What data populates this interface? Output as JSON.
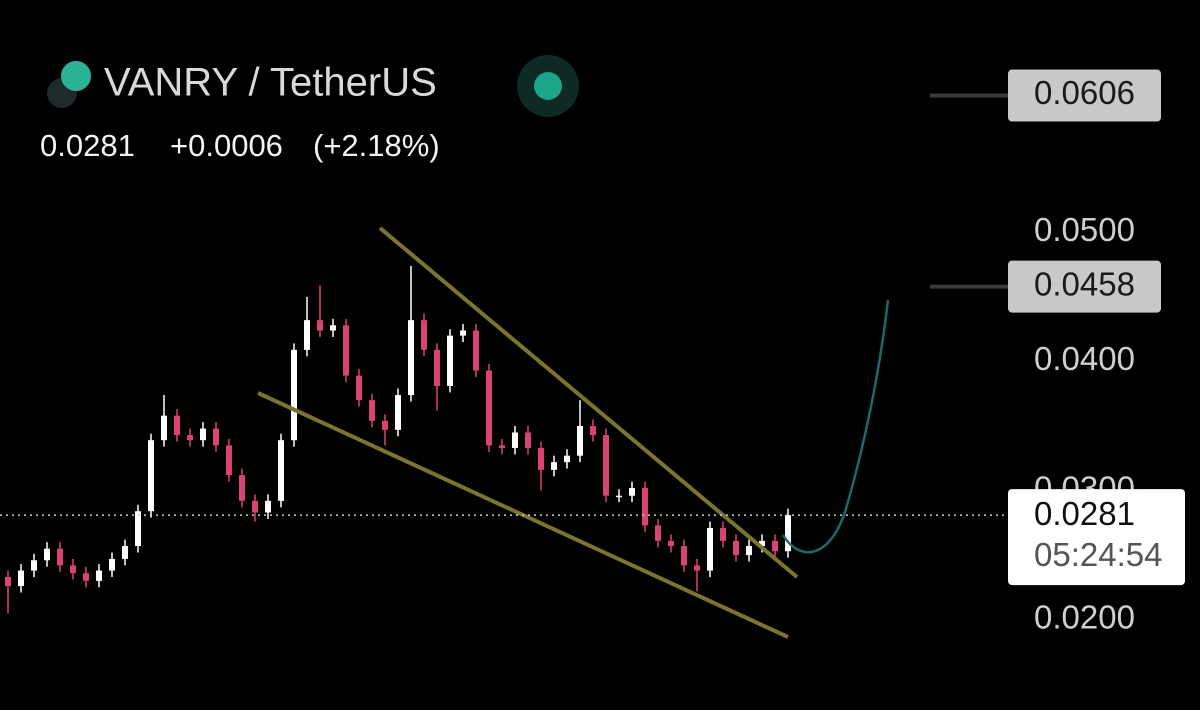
{
  "chart_data": {
    "type": "candlestick",
    "title": "VANRY / TetherUS",
    "change": "+0.0006",
    "change_pct": "(+2.18%)",
    "last_price": 0.0281,
    "countdown": "05:24:54",
    "levels": [
      0.0606,
      0.0458
    ],
    "up_color": "#ffffff",
    "down_color": "#d9437a",
    "grid": false,
    "ylim": [
      0.013,
      0.068
    ],
    "yticks": [
      {
        "value": 0.02,
        "label": "0.0200"
      },
      {
        "value": 0.03,
        "label": "0.0300"
      },
      {
        "value": 0.04,
        "label": "0.0400"
      },
      {
        "value": 0.05,
        "label": "0.0500"
      }
    ],
    "open": [
      0.0233,
      0.0226,
      0.0238,
      0.0246,
      0.0255,
      0.0242,
      0.0236,
      0.023,
      0.0238,
      0.0247,
      0.0257,
      0.0284,
      0.0339,
      0.0358,
      0.0343,
      0.0339,
      0.0348,
      0.0335,
      0.0312,
      0.0292,
      0.0283,
      0.0292,
      0.0339,
      0.0409,
      0.0432,
      0.0424,
      0.0428,
      0.0389,
      0.037,
      0.0354,
      0.0347,
      0.0374,
      0.0432,
      0.0409,
      0.0381,
      0.042,
      0.0424,
      0.0393,
      0.0335,
      0.0333,
      0.0345,
      0.0333,
      0.0316,
      0.0322,
      0.0327,
      0.035,
      0.0343,
      0.0296,
      0.0296,
      0.0302,
      0.0273,
      0.0261,
      0.0257,
      0.0242,
      0.0238,
      0.0271,
      0.0261,
      0.025,
      0.0257,
      0.0261,
      0.0253
    ],
    "high": [
      0.0238,
      0.0243,
      0.0251,
      0.026,
      0.026,
      0.0247,
      0.0241,
      0.0243,
      0.0252,
      0.0262,
      0.0289,
      0.0344,
      0.0374,
      0.0363,
      0.0348,
      0.0353,
      0.0353,
      0.034,
      0.0317,
      0.0297,
      0.0297,
      0.0344,
      0.0414,
      0.045,
      0.0459,
      0.0433,
      0.0433,
      0.0394,
      0.0375,
      0.0359,
      0.0379,
      0.0474,
      0.0437,
      0.0414,
      0.0425,
      0.0429,
      0.0429,
      0.0398,
      0.034,
      0.035,
      0.035,
      0.0338,
      0.0327,
      0.0332,
      0.037,
      0.0355,
      0.0348,
      0.0301,
      0.0307,
      0.0307,
      0.0278,
      0.0266,
      0.0262,
      0.0247,
      0.0276,
      0.0276,
      0.0266,
      0.0262,
      0.0266,
      0.0266,
      0.0286
    ],
    "low": [
      0.0205,
      0.0221,
      0.0233,
      0.0241,
      0.0237,
      0.0231,
      0.0225,
      0.0225,
      0.0233,
      0.0242,
      0.0252,
      0.0279,
      0.0334,
      0.0338,
      0.0334,
      0.0334,
      0.033,
      0.0307,
      0.0287,
      0.0276,
      0.0278,
      0.0287,
      0.0334,
      0.0404,
      0.0419,
      0.0419,
      0.0384,
      0.0365,
      0.0349,
      0.0335,
      0.0342,
      0.0369,
      0.0404,
      0.0362,
      0.0376,
      0.0415,
      0.0388,
      0.033,
      0.0328,
      0.0328,
      0.0328,
      0.03,
      0.0311,
      0.0317,
      0.0322,
      0.0338,
      0.0291,
      0.0291,
      0.0291,
      0.0268,
      0.0256,
      0.0252,
      0.0237,
      0.0222,
      0.0233,
      0.0256,
      0.0245,
      0.0245,
      0.0252,
      0.0248,
      0.0248
    ],
    "close": [
      0.0226,
      0.0238,
      0.0246,
      0.0255,
      0.0242,
      0.0236,
      0.023,
      0.0238,
      0.0247,
      0.0257,
      0.0284,
      0.0339,
      0.0358,
      0.0343,
      0.0339,
      0.0348,
      0.0335,
      0.0312,
      0.0292,
      0.0283,
      0.0292,
      0.0339,
      0.0409,
      0.0432,
      0.0424,
      0.0428,
      0.0389,
      0.037,
      0.0354,
      0.0347,
      0.0374,
      0.0432,
      0.0409,
      0.0381,
      0.042,
      0.0424,
      0.0393,
      0.0335,
      0.0333,
      0.0345,
      0.0333,
      0.0316,
      0.0322,
      0.0327,
      0.035,
      0.0343,
      0.0296,
      0.0296,
      0.0302,
      0.0273,
      0.0261,
      0.0257,
      0.0242,
      0.0238,
      0.0271,
      0.0261,
      0.025,
      0.0257,
      0.0261,
      0.0253,
      0.0281
    ]
  }
}
